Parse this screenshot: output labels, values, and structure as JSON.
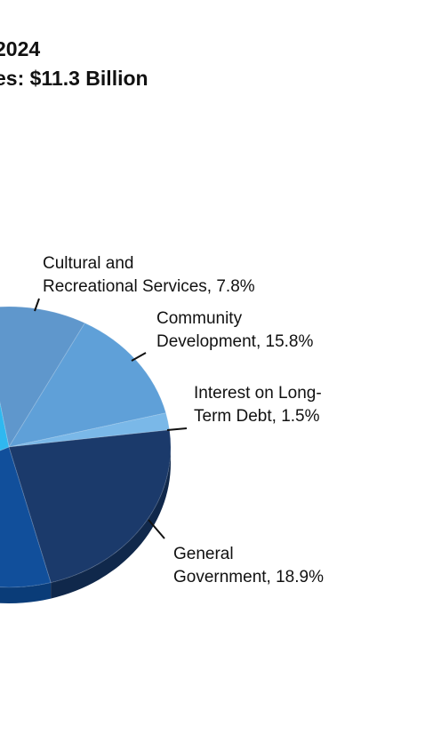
{
  "title": {
    "line1": "2024",
    "line2": "es:  $11.3 Billion"
  },
  "chart_data": {
    "type": "pie",
    "slices": [
      {
        "label_lines": [
          "Cultural and",
          "Recreational Services, 7.8%"
        ],
        "value": 7.8,
        "color": "#5f97cc",
        "side_color": "#3f6c98"
      },
      {
        "label_lines": [
          "Community",
          "Development, 15.8%"
        ],
        "value": 15.8,
        "color": "#5fa0d8",
        "side_color": "#3f73a3"
      },
      {
        "label_lines": [
          "Interest on Long-",
          "Term Debt, 1.5%"
        ],
        "value": 1.5,
        "color": "#7ab8e8",
        "side_color": "#5689b4"
      },
      {
        "label_lines": [
          "General",
          "Government, 18.9%"
        ],
        "value": 18.9,
        "color": "#1b3a6b",
        "side_color": "#10284b"
      },
      {
        "label_lines": [],
        "value": null,
        "color": "#114f9b",
        "side_color": "#0a3c78"
      },
      {
        "label_lines": [],
        "value": null,
        "color": "#2fb8f0",
        "side_color": "#1b84b3"
      }
    ]
  }
}
